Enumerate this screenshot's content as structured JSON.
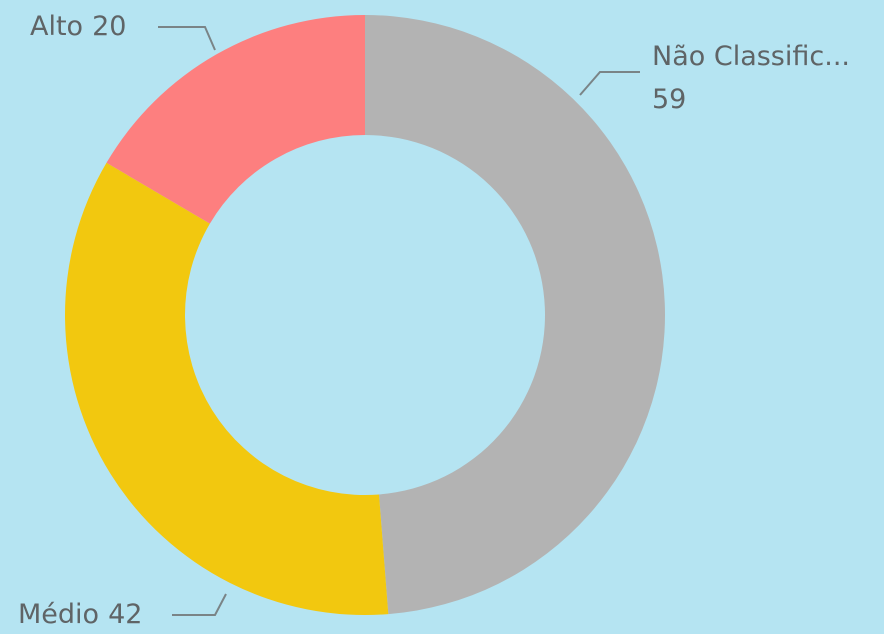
{
  "chart_data": {
    "type": "donut",
    "categories": [
      "Não Classific...",
      "Médio",
      "Alto"
    ],
    "values": [
      59,
      42,
      20
    ],
    "colors": [
      "#b3b3b3",
      "#f2c80f",
      "#fd7f7f"
    ]
  }
}
